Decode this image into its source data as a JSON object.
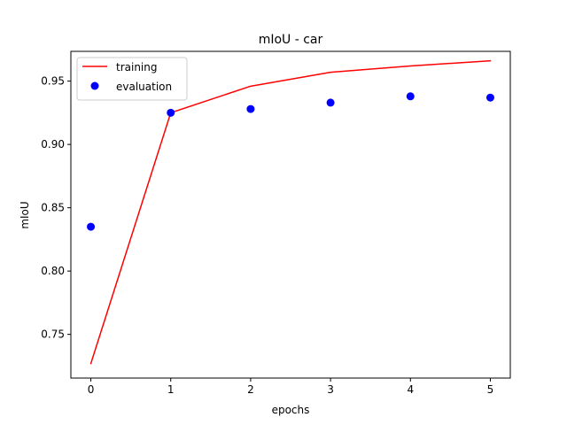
{
  "chart_data": {
    "type": "line",
    "title": "mIoU - car",
    "xlabel": "epochs",
    "ylabel": "mIoU",
    "x": [
      0,
      1,
      2,
      3,
      4,
      5
    ],
    "xlim": [
      -0.25,
      5.25
    ],
    "ylim": [
      0.7155,
      0.9735
    ],
    "xticks": [
      0,
      1,
      2,
      3,
      4,
      5
    ],
    "yticks": [
      0.75,
      0.8,
      0.85,
      0.9,
      0.95
    ],
    "ytick_labels": [
      "0.75",
      "0.80",
      "0.85",
      "0.90",
      "0.95"
    ],
    "grid": false,
    "legend_position": "upper-left",
    "series": [
      {
        "name": "training",
        "style": "line",
        "color": "#ff0000",
        "values": [
          0.727,
          0.925,
          0.946,
          0.957,
          0.962,
          0.966
        ]
      },
      {
        "name": "evaluation",
        "style": "markers",
        "color": "#0000ff",
        "values": [
          0.835,
          0.925,
          0.928,
          0.933,
          0.938,
          0.937
        ]
      }
    ]
  }
}
